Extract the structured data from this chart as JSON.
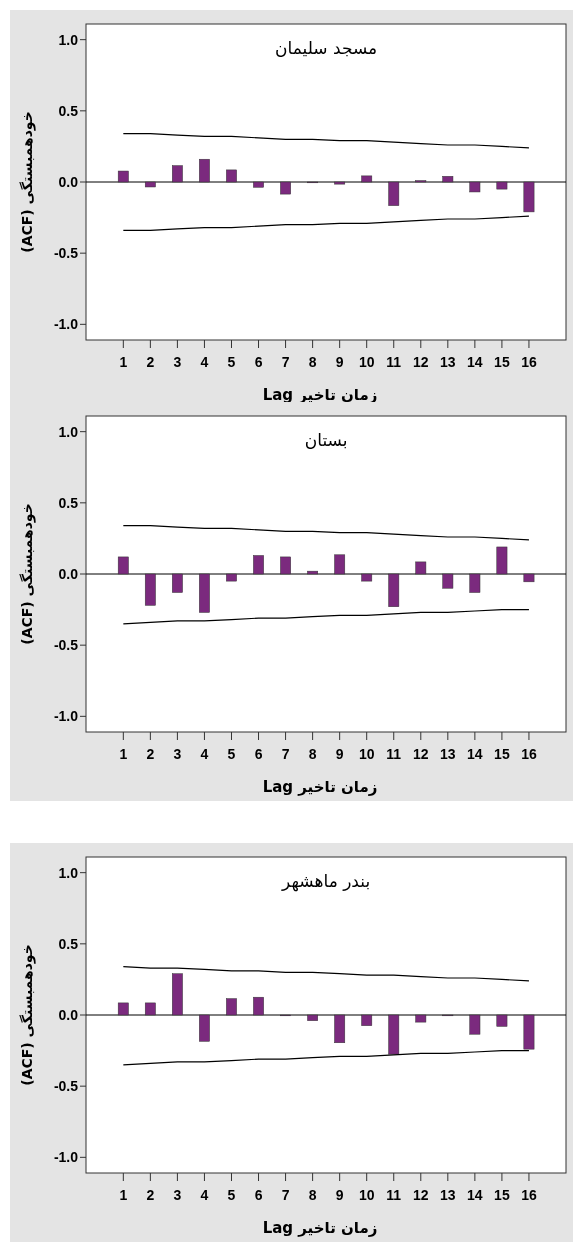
{
  "chart_data": [
    {
      "type": "bar",
      "title": "مسجد سلیمان",
      "xlabel": "Lag زمان تاخیر",
      "ylabel": "(ACF) خودهمبستگی",
      "x": [
        1,
        2,
        3,
        4,
        5,
        6,
        7,
        8,
        9,
        10,
        11,
        12,
        13,
        14,
        15,
        16
      ],
      "xlim": [
        -0.38,
        17.37
      ],
      "xticks": [
        1,
        2,
        3,
        4,
        5,
        6,
        7,
        8,
        9,
        10,
        11,
        12,
        13,
        14,
        15,
        16
      ],
      "ylim": [
        -1.11,
        1.11
      ],
      "yticks": [
        {
          "value": 1,
          "label": "1.0"
        },
        {
          "value": 0.5,
          "label": "0.5"
        },
        {
          "value": 0,
          "label": "0.0"
        },
        {
          "value": -0.5,
          "label": "-0.5"
        },
        {
          "value": -1,
          "label": "-1.0"
        }
      ],
      "series": [
        {
          "color": "#7b2a7e",
          "values": [
            0.077,
            -0.035,
            0.115,
            0.16,
            0.085,
            -0.037,
            -0.085,
            0.0,
            -0.015,
            0.043,
            -0.166,
            0.01,
            0.04,
            -0.07,
            -0.05,
            -0.21
          ]
        },
        {
          "type": "line",
          "color": "#000000",
          "values": [
            0.34,
            0.34,
            0.33,
            0.32,
            0.32,
            0.31,
            0.3,
            0.3,
            0.29,
            0.29,
            0.28,
            0.27,
            0.26,
            0.26,
            0.25,
            0.24
          ]
        },
        {
          "type": "line",
          "color": "#000000",
          "values": [
            -0.34,
            -0.34,
            -0.33,
            -0.32,
            -0.32,
            -0.31,
            -0.3,
            -0.3,
            -0.29,
            -0.29,
            -0.28,
            -0.27,
            -0.26,
            -0.26,
            -0.25,
            -0.24
          ]
        }
      ]
    },
    {
      "type": "bar",
      "title": "بستان",
      "xlabel": "Lag زمان تاخیر",
      "ylabel": "(ACF) خودهمبستگی",
      "x": [
        1,
        2,
        3,
        4,
        5,
        6,
        7,
        8,
        9,
        10,
        11,
        12,
        13,
        14,
        15,
        16
      ],
      "xlim": [
        -0.38,
        17.37
      ],
      "xticks": [
        1,
        2,
        3,
        4,
        5,
        6,
        7,
        8,
        9,
        10,
        11,
        12,
        13,
        14,
        15,
        16
      ],
      "ylim": [
        -1.11,
        1.11
      ],
      "yticks": [
        {
          "value": 1,
          "label": "1.0"
        },
        {
          "value": 0.5,
          "label": "0.5"
        },
        {
          "value": 0,
          "label": "0.0"
        },
        {
          "value": -0.5,
          "label": "-0.5"
        },
        {
          "value": -1,
          "label": "-1.0"
        }
      ],
      "series": [
        {
          "color": "#7b2a7e",
          "values": [
            0.12,
            -0.22,
            -0.13,
            -0.27,
            -0.05,
            0.13,
            0.12,
            0.02,
            0.135,
            -0.05,
            -0.23,
            0.085,
            -0.1,
            -0.13,
            0.19,
            -0.055
          ]
        },
        {
          "type": "line",
          "color": "#000000",
          "values": [
            0.34,
            0.34,
            0.33,
            0.32,
            0.32,
            0.31,
            0.3,
            0.3,
            0.29,
            0.29,
            0.28,
            0.27,
            0.26,
            0.26,
            0.25,
            0.24
          ]
        },
        {
          "type": "line",
          "color": "#000000",
          "values": [
            -0.35,
            -0.34,
            -0.33,
            -0.33,
            -0.32,
            -0.31,
            -0.31,
            -0.3,
            -0.29,
            -0.29,
            -0.28,
            -0.27,
            -0.27,
            -0.26,
            -0.25,
            -0.25
          ]
        }
      ]
    },
    {
      "type": "bar",
      "title": "بندر ماهشهر",
      "xlabel": "Lag زمان تاخیر",
      "ylabel": "(ACF) خودهمبستگی",
      "x": [
        1,
        2,
        3,
        4,
        5,
        6,
        7,
        8,
        9,
        10,
        11,
        12,
        13,
        14,
        15,
        16
      ],
      "xlim": [
        -0.38,
        17.37
      ],
      "xticks": [
        1,
        2,
        3,
        4,
        5,
        6,
        7,
        8,
        9,
        10,
        11,
        12,
        13,
        14,
        15,
        16
      ],
      "ylim": [
        -1.11,
        1.11
      ],
      "yticks": [
        {
          "value": 1,
          "label": "1.0"
        },
        {
          "value": 0.5,
          "label": "0.5"
        },
        {
          "value": 0,
          "label": "0.0"
        },
        {
          "value": -0.5,
          "label": "-0.5"
        },
        {
          "value": -1,
          "label": "-1.0"
        }
      ],
      "series": [
        {
          "color": "#7b2a7e",
          "values": [
            0.085,
            0.085,
            0.29,
            -0.185,
            0.115,
            0.125,
            0.0,
            -0.04,
            -0.195,
            -0.075,
            -0.275,
            -0.05,
            0.0,
            -0.135,
            -0.08,
            -0.24
          ]
        },
        {
          "type": "line",
          "color": "#000000",
          "values": [
            0.34,
            0.33,
            0.33,
            0.32,
            0.31,
            0.31,
            0.3,
            0.3,
            0.29,
            0.28,
            0.28,
            0.27,
            0.26,
            0.26,
            0.25,
            0.24
          ]
        },
        {
          "type": "line",
          "color": "#000000",
          "values": [
            -0.35,
            -0.34,
            -0.33,
            -0.33,
            -0.32,
            -0.31,
            -0.31,
            -0.3,
            -0.29,
            -0.29,
            -0.28,
            -0.27,
            -0.27,
            -0.26,
            -0.25,
            -0.25
          ]
        }
      ]
    }
  ]
}
